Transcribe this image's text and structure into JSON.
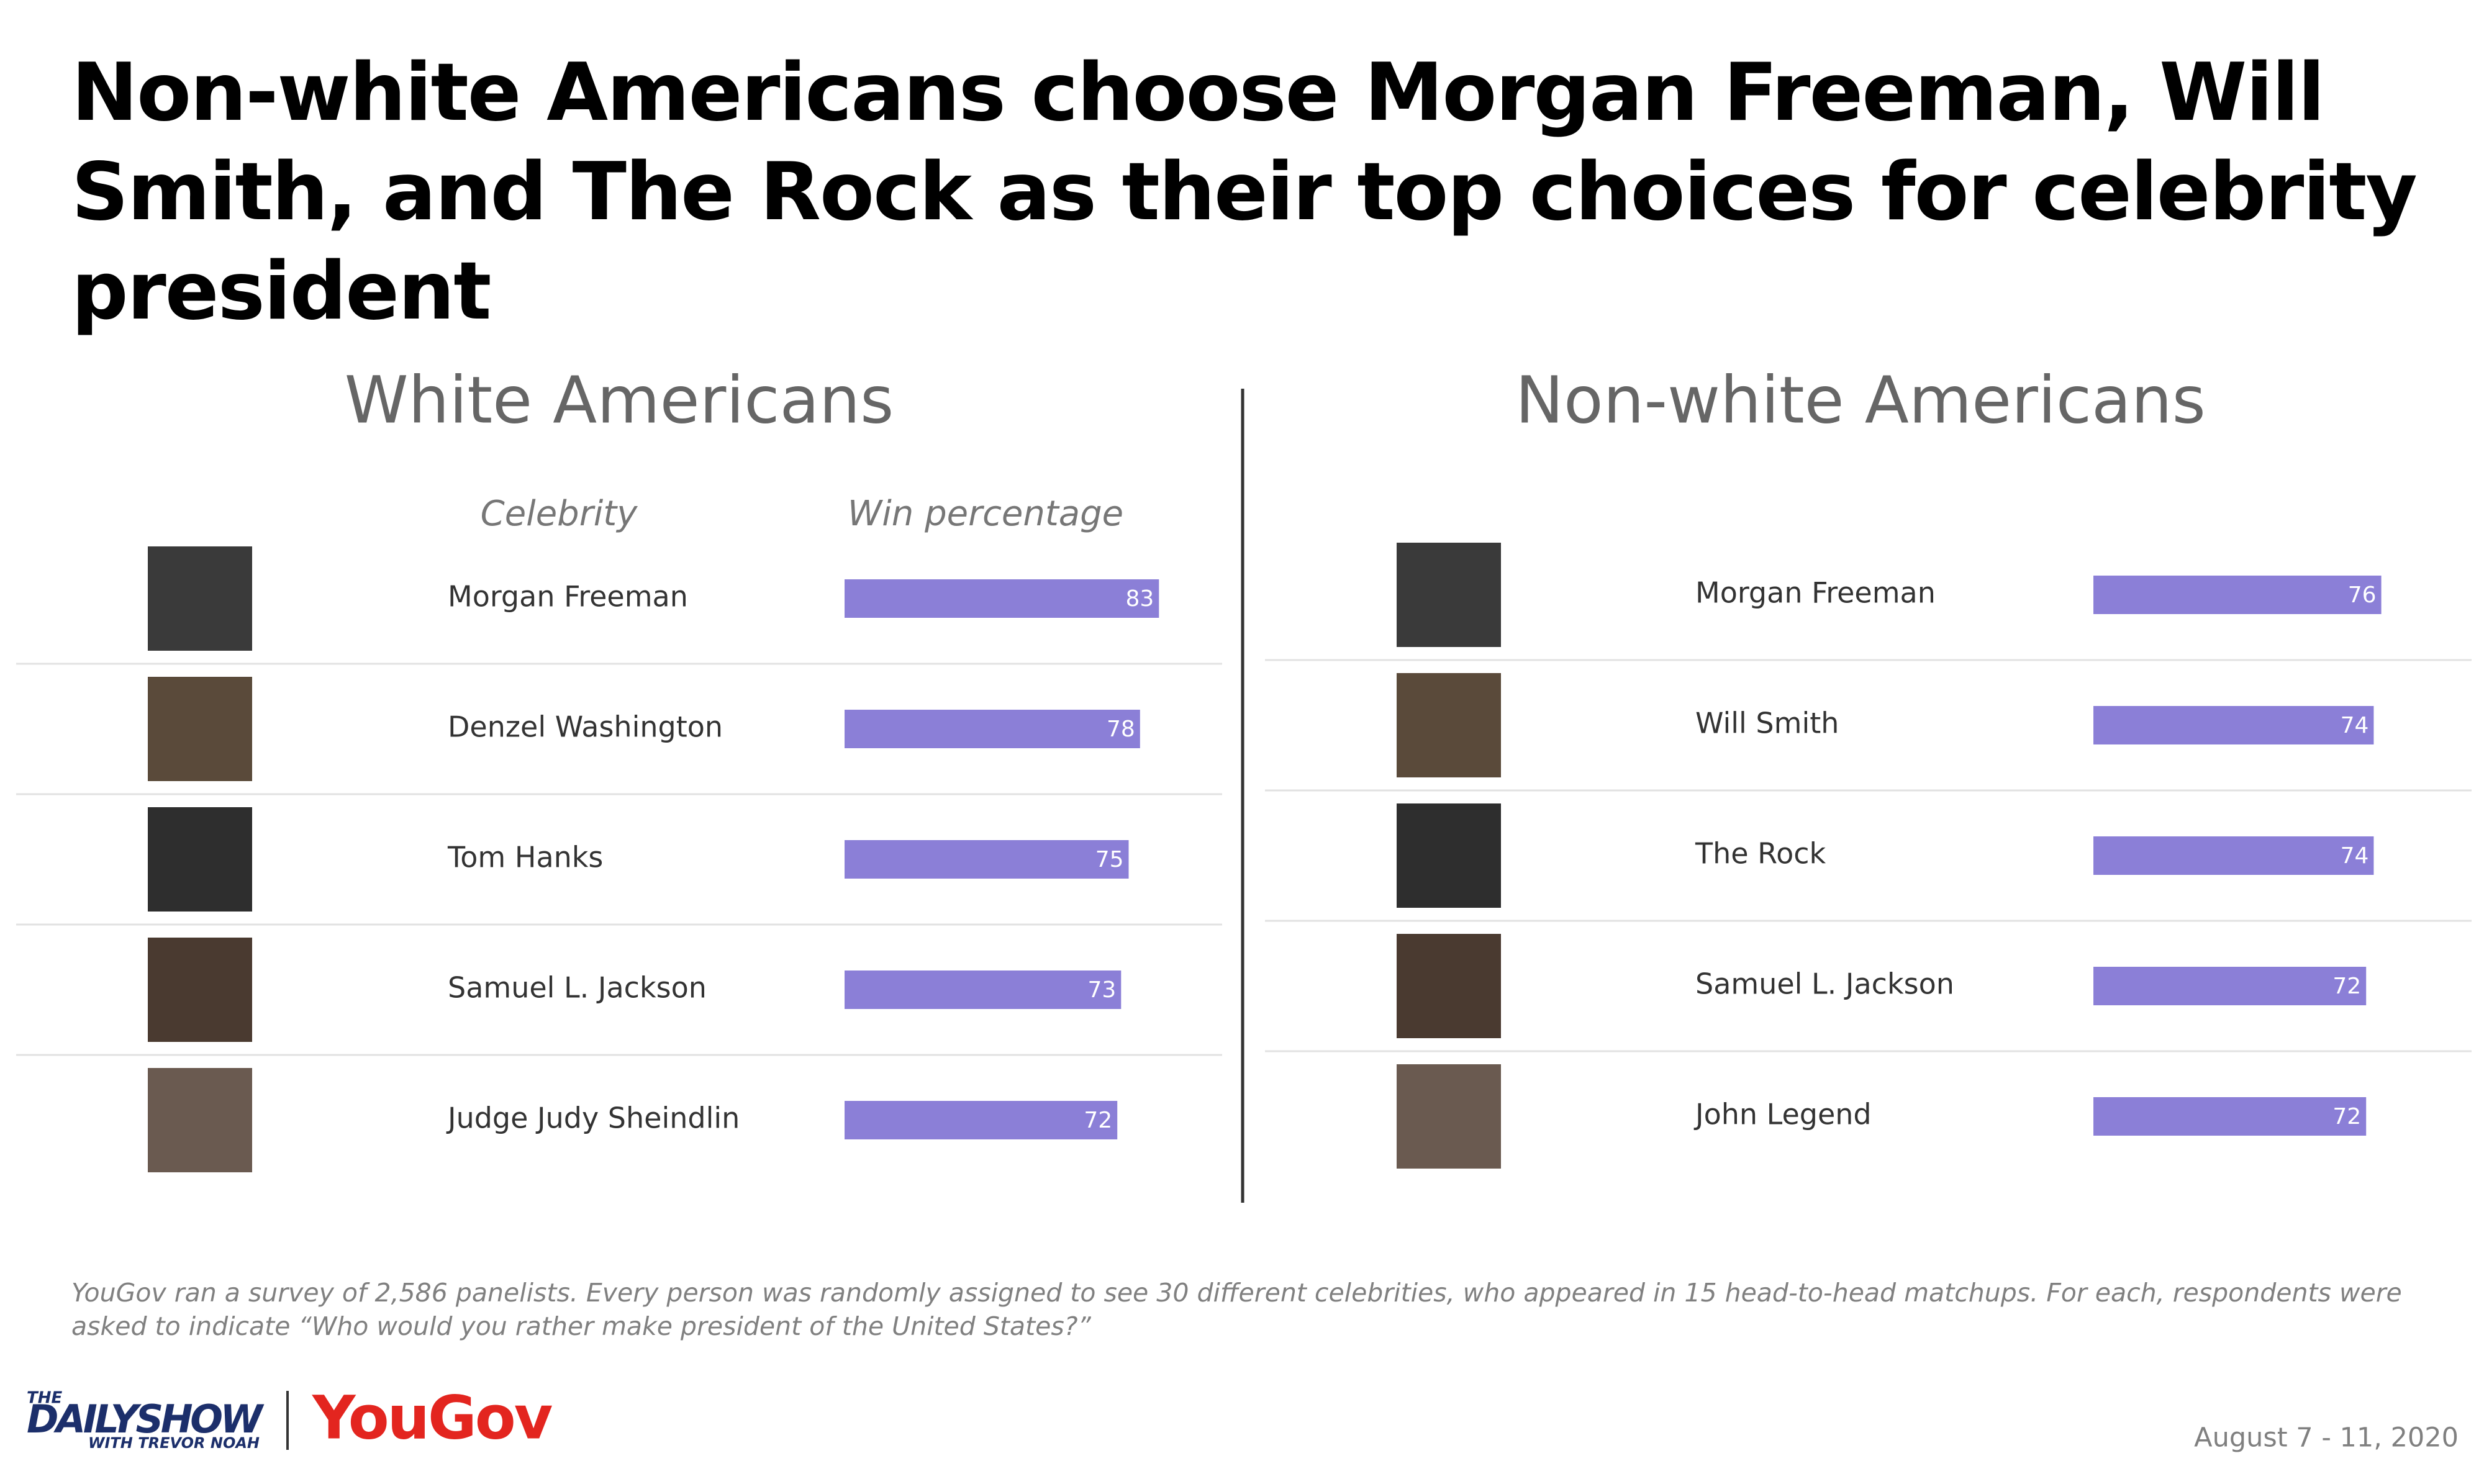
{
  "title": "Non-white Americans choose Morgan Freeman, Will Smith, and The Rock as their top choices for celebrity president",
  "chart_data": [
    {
      "type": "bar",
      "title": "White Americans",
      "category_header": "Celebrity",
      "value_header": "Win percentage",
      "categories": [
        "Morgan Freeman",
        "Denzel Washington",
        "Tom Hanks",
        "Samuel L. Jackson",
        "Judge Judy Sheindlin"
      ],
      "values": [
        83,
        78,
        75,
        73,
        72
      ],
      "color": "#8b7fd7"
    },
    {
      "type": "bar",
      "title": "Non-white Americans",
      "categories": [
        "Morgan Freeman",
        "Will Smith",
        "The Rock",
        "Samuel L. Jackson",
        "John Legend"
      ],
      "values": [
        76,
        74,
        74,
        72,
        72
      ],
      "color": "#8b7fd7"
    }
  ],
  "note": "YouGov ran a survey of 2,586 panelists. Every person was randomly assigned to see 30 different celebrities, who appeared in 15 head-to-head matchups. For each, respondents were asked to indicate “Who would you rather make president of the United States?”",
  "branding": {
    "show_the": "THE",
    "show_name": "DAILYSHOW",
    "show_host": "WITH TREVOR NOAH",
    "pollster": "YouGov"
  },
  "date": "August 7 - 11, 2020"
}
